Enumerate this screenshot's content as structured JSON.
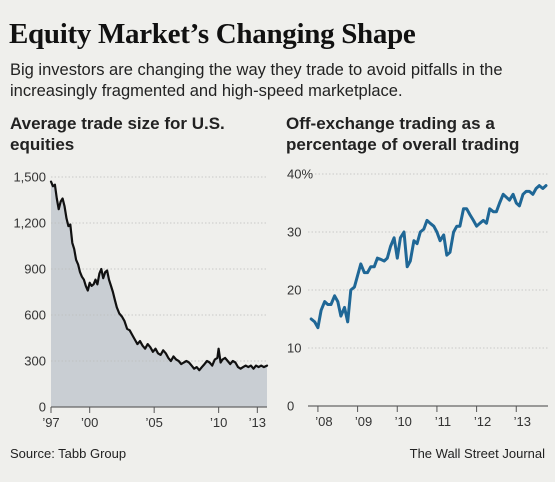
{
  "header": {
    "title": "Equity Market’s Changing Shape",
    "subtitle": "Big investors are changing the way they trade to avoid pitfalls in the increasingly fragmented and high-speed marketplace."
  },
  "footer": {
    "source": "Source: Tabb Group",
    "credit": "The Wall Street Journal"
  },
  "colors": {
    "background": "#efefec",
    "area_fill": "#c9ced3",
    "left_line": "#111111",
    "right_line": "#1f6796",
    "grid": "#bdbdbd"
  },
  "chart_data": [
    {
      "type": "area",
      "title": "Average trade size for U.S. equities",
      "xlabel": "",
      "ylabel": "",
      "xlim": [
        1997.0,
        2013.75
      ],
      "ylim": [
        0,
        1500
      ],
      "yticks": [
        0,
        300,
        600,
        900,
        1200,
        1500
      ],
      "xtick_labels": [
        "’97",
        "’00",
        "’05",
        "’10",
        "’13"
      ],
      "xtick_values": [
        1997,
        2000,
        2005,
        2010,
        2013
      ],
      "grid": true,
      "x": [
        1997.0,
        1997.15,
        1997.3,
        1997.45,
        1997.6,
        1997.75,
        1997.9,
        1998.05,
        1998.2,
        1998.35,
        1998.5,
        1998.65,
        1998.8,
        1998.95,
        1999.1,
        1999.25,
        1999.4,
        1999.55,
        1999.7,
        1999.85,
        2000.0,
        2000.15,
        2000.3,
        2000.45,
        2000.6,
        2000.75,
        2000.9,
        2001.05,
        2001.2,
        2001.35,
        2001.5,
        2001.65,
        2001.8,
        2001.95,
        2002.1,
        2002.3,
        2002.5,
        2002.7,
        2002.9,
        2003.1,
        2003.3,
        2003.5,
        2003.7,
        2003.9,
        2004.1,
        2004.3,
        2004.5,
        2004.7,
        2004.9,
        2005.1,
        2005.3,
        2005.5,
        2005.7,
        2005.9,
        2006.1,
        2006.3,
        2006.5,
        2006.7,
        2006.9,
        2007.1,
        2007.3,
        2007.5,
        2007.7,
        2007.9,
        2008.1,
        2008.3,
        2008.5,
        2008.7,
        2008.9,
        2009.1,
        2009.3,
        2009.5,
        2009.7,
        2009.9,
        2010.0,
        2010.15,
        2010.3,
        2010.5,
        2010.7,
        2010.9,
        2011.1,
        2011.3,
        2011.5,
        2011.7,
        2011.9,
        2012.1,
        2012.3,
        2012.5,
        2012.7,
        2012.9,
        2013.1,
        2013.3,
        2013.5,
        2013.75
      ],
      "values": [
        1470,
        1440,
        1450,
        1360,
        1290,
        1340,
        1360,
        1310,
        1230,
        1180,
        1190,
        1070,
        1030,
        960,
        930,
        880,
        850,
        830,
        790,
        760,
        810,
        790,
        800,
        830,
        800,
        870,
        900,
        840,
        880,
        890,
        830,
        790,
        750,
        700,
        650,
        610,
        590,
        560,
        510,
        500,
        470,
        440,
        410,
        430,
        400,
        380,
        410,
        390,
        360,
        380,
        350,
        340,
        370,
        350,
        320,
        300,
        330,
        310,
        300,
        280,
        290,
        300,
        290,
        270,
        250,
        260,
        240,
        260,
        280,
        300,
        290,
        270,
        310,
        320,
        380,
        290,
        310,
        320,
        300,
        280,
        300,
        290,
        260,
        250,
        260,
        270,
        260,
        270,
        250,
        270,
        260,
        270,
        260,
        270
      ]
    },
    {
      "type": "line",
      "title": "Off-exchange trading as a percentage of overall trading",
      "xlabel": "",
      "ylabel": "",
      "xlim": [
        2007.75,
        2013.8
      ],
      "ylim": [
        0,
        40
      ],
      "yticks": [
        0,
        10,
        20,
        30,
        40
      ],
      "ytick_labels": [
        "0",
        "10",
        "20",
        "30",
        "40%"
      ],
      "xtick_labels": [
        "’08",
        "’09",
        "’10",
        "’11",
        "’12",
        "’13"
      ],
      "xtick_values": [
        2008,
        2009,
        2010,
        2011,
        2012,
        2013
      ],
      "grid": true,
      "x": [
        2007.83,
        2007.92,
        2008.0,
        2008.08,
        2008.17,
        2008.25,
        2008.33,
        2008.42,
        2008.5,
        2008.58,
        2008.67,
        2008.75,
        2008.83,
        2008.92,
        2009.0,
        2009.08,
        2009.17,
        2009.25,
        2009.33,
        2009.42,
        2009.5,
        2009.58,
        2009.67,
        2009.75,
        2009.83,
        2009.92,
        2010.0,
        2010.08,
        2010.17,
        2010.25,
        2010.33,
        2010.42,
        2010.5,
        2010.58,
        2010.67,
        2010.75,
        2010.83,
        2010.92,
        2011.0,
        2011.08,
        2011.17,
        2011.25,
        2011.33,
        2011.42,
        2011.5,
        2011.58,
        2011.67,
        2011.75,
        2011.83,
        2011.92,
        2012.0,
        2012.08,
        2012.17,
        2012.25,
        2012.33,
        2012.42,
        2012.5,
        2012.58,
        2012.67,
        2012.75,
        2012.83,
        2012.92,
        2013.0,
        2013.08,
        2013.17,
        2013.25,
        2013.33,
        2013.42,
        2013.5,
        2013.58,
        2013.67,
        2013.75
      ],
      "values": [
        15,
        14.5,
        13.5,
        16.5,
        18,
        17.5,
        17.5,
        19,
        18,
        15.5,
        17,
        14.5,
        20,
        20.5,
        22.5,
        24.5,
        23,
        23,
        24,
        24,
        25.5,
        25.3,
        25,
        25.5,
        27.5,
        29,
        25.5,
        29,
        30,
        24,
        25,
        28.5,
        28,
        30,
        30.5,
        32,
        31.5,
        31,
        30,
        28.5,
        29.5,
        26,
        26.5,
        30,
        31,
        31,
        34,
        34,
        33,
        32,
        31,
        31.5,
        32,
        31.5,
        34,
        33.5,
        33.5,
        35,
        36.5,
        36,
        35.5,
        36.5,
        35,
        34.5,
        36.5,
        37,
        37,
        36.5,
        37.5,
        38,
        37.5,
        38
      ]
    }
  ]
}
